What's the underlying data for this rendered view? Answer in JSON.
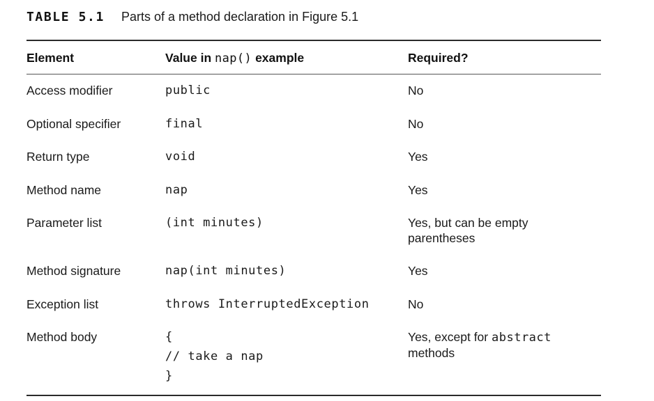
{
  "caption": {
    "label": "TABLE 5.1",
    "text": "Parts of a method declaration in Figure 5.1"
  },
  "headers": {
    "element": "Element",
    "value_prefix": "Value in",
    "value_code": "nap()",
    "value_suffix": "example",
    "required": "Required?"
  },
  "rows": [
    {
      "element": "Access modifier",
      "value": "public",
      "required": "No"
    },
    {
      "element": "Optional specifier",
      "value": "final",
      "required": "No"
    },
    {
      "element": "Return type",
      "value": "void",
      "required": "Yes"
    },
    {
      "element": "Method name",
      "value": "nap",
      "required": "Yes"
    },
    {
      "element": "Parameter list",
      "value": "(int minutes)",
      "required_line1": "Yes, but can be empty",
      "required_line2": "parentheses"
    },
    {
      "element": "Method signature",
      "value": "nap(int minutes)",
      "required": "Yes"
    },
    {
      "element": "Exception list",
      "value": "throws InterruptedException",
      "required": "No"
    },
    {
      "element": "Method body",
      "value_line1": "{",
      "value_line2": "// take a nap",
      "value_line3": "}",
      "required_prefix": "Yes, except for",
      "required_code": "abstract",
      "required_line2": "methods"
    }
  ]
}
